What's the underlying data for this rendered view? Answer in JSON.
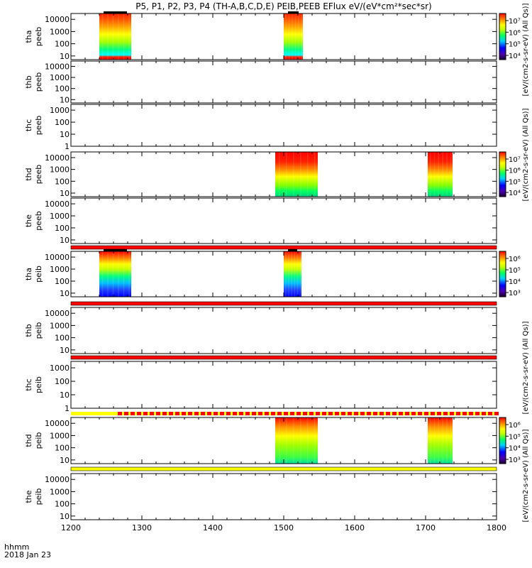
{
  "title": "P5, P1, P2, P3, P4 (TH-A,B,C,D,E) PEIB,PEEB EFlux eV/(eV*cm²*sec*sr)",
  "time_label_line1": "hhmm",
  "time_label_line2": "2018 Jan 23",
  "x_ticks": [
    "1200",
    "1300",
    "1400",
    "1500",
    "1600",
    "1700",
    "1800"
  ],
  "colors": {
    "red": "#ff0000",
    "yellow": "#ffff00",
    "black": "#000000"
  },
  "chart_data": {
    "type": "heatmap",
    "x_range": [
      1200,
      1800
    ],
    "x_tick_values": [
      1200,
      1300,
      1400,
      1500,
      1600,
      1700,
      1800
    ],
    "panels": [
      {
        "id": "tha-peeb",
        "label1": "tha",
        "label2": "peeb",
        "yticks": [
          "10000",
          "1000",
          "100",
          "10"
        ],
        "ylog_range": [
          5,
          30000
        ],
        "blocks": [
          {
            "t0": 1240,
            "t1": 1285,
            "profile": "e1"
          },
          {
            "t0": 1500,
            "t1": 1527,
            "profile": "e1"
          }
        ],
        "colorbar": {
          "labels": [
            "10⁷",
            "10⁶",
            "10⁵",
            "10⁴"
          ],
          "title": "eV/(cm2-s-sr-eV)"
        }
      },
      {
        "id": "thb-peeb",
        "label1": "thb",
        "label2": "peeb",
        "yticks": [
          "10000",
          "1000",
          "100",
          "10"
        ],
        "ylog_range": [
          5,
          30000
        ],
        "blocks": []
      },
      {
        "id": "thc-peeb",
        "label1": "thc",
        "label2": "peeb",
        "yticks": [
          "1000",
          "100",
          "10",
          "1"
        ],
        "ylog_range": [
          1,
          3000
        ],
        "blocks": []
      },
      {
        "id": "thd-peeb",
        "label1": "thd",
        "label2": "peeb",
        "yticks": [
          "10000",
          "1000",
          "100",
          "10"
        ],
        "ylog_range": [
          5,
          30000
        ],
        "blocks": [
          {
            "t0": 1488,
            "t1": 1548,
            "profile": "e2"
          },
          {
            "t0": 1703,
            "t1": 1738,
            "profile": "e2"
          }
        ],
        "colorbar": {
          "labels": [
            "10⁷",
            "10⁶",
            "10⁵",
            "10⁴"
          ],
          "title": "eV/(cm2-s-sr-eV)"
        }
      },
      {
        "id": "the-peeb",
        "label1": "the",
        "label2": "peeb",
        "yticks": [
          "10000",
          "1000",
          "100",
          "10"
        ],
        "ylog_range": [
          5,
          30000
        ],
        "blocks": []
      },
      {
        "id": "tha-peib",
        "label1": "tha",
        "label2": "peib",
        "yticks": [
          "10000",
          "1000",
          "100",
          "10"
        ],
        "ylog_range": [
          5,
          30000
        ],
        "blocks": [
          {
            "t0": 1240,
            "t1": 1285,
            "profile": "i1"
          },
          {
            "t0": 1500,
            "t1": 1525,
            "profile": "i1"
          }
        ],
        "colorbar": {
          "labels": [
            "10⁶",
            "10⁵",
            "10⁴",
            "10³"
          ],
          "title": "eV/(cm2-s-sr-eV)"
        }
      },
      {
        "id": "thb-peib",
        "label1": "thb",
        "label2": "peib",
        "yticks": [
          "10000",
          "1000",
          "100",
          "10"
        ],
        "ylog_range": [
          5,
          30000
        ],
        "blocks": []
      },
      {
        "id": "thc-peib",
        "label1": "thc",
        "label2": "peib",
        "yticks": [
          "1000",
          "100",
          "10",
          "1"
        ],
        "ylog_range": [
          1,
          3000
        ],
        "blocks": []
      },
      {
        "id": "thd-peib",
        "label1": "thd",
        "label2": "peib",
        "yticks": [
          "10000",
          "1000",
          "100",
          "10"
        ],
        "ylog_range": [
          5,
          30000
        ],
        "blocks": [
          {
            "t0": 1488,
            "t1": 1548,
            "profile": "i2"
          },
          {
            "t0": 1703,
            "t1": 1738,
            "profile": "i2"
          }
        ],
        "colorbar": {
          "labels": [
            "10⁶",
            "10⁵",
            "10⁴",
            "10³"
          ],
          "title": "eV/(cm2-s-sr-eV)"
        }
      },
      {
        "id": "the-peib",
        "label1": "the",
        "label2": "peib",
        "yticks": [
          "10000",
          "1000",
          "100",
          "10"
        ],
        "ylog_range": [
          5,
          30000
        ],
        "blocks": []
      }
    ],
    "group_colorbar_titles": [
      {
        "text": "[eV/(cm2-s-sr-eV) (All Qs)]"
      },
      {
        "text": "[eV/(cm2-s-sr-eV) (All Qs)]"
      },
      {
        "text": "[eV/(cm2-s-sr-eV) (All Qs)]"
      },
      {
        "text": "[eV/(cm2-s-sr-eV) (All Qs)]"
      }
    ]
  }
}
